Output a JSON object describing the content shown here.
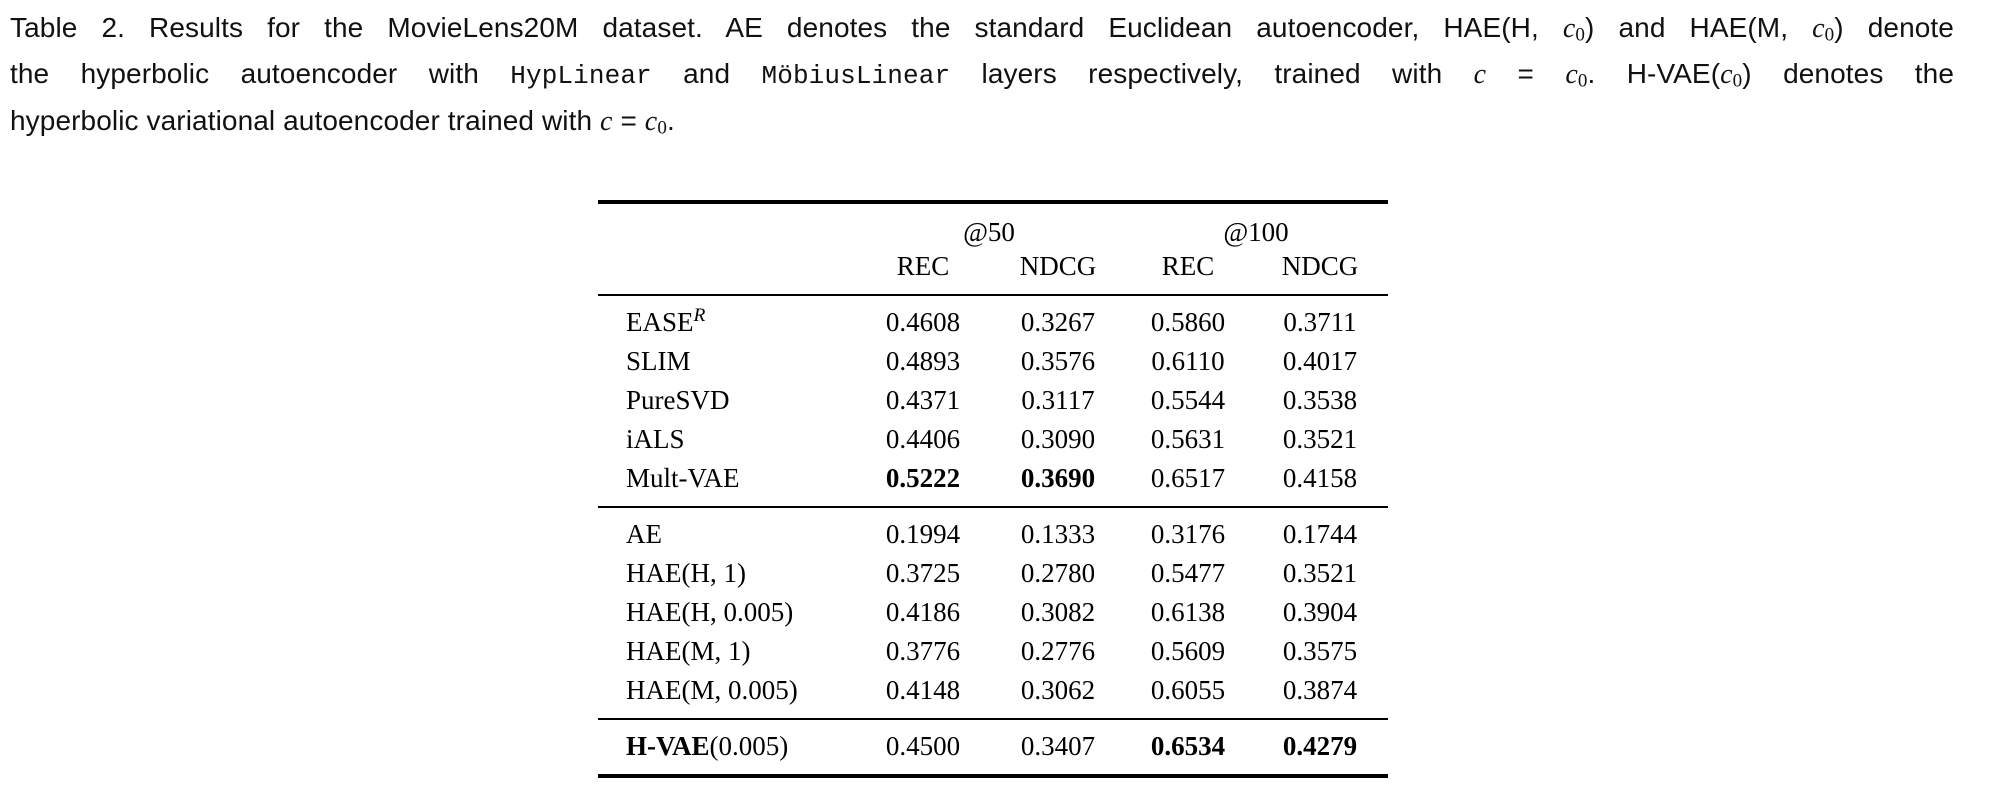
{
  "caption": {
    "lines": [
      [
        {
          "k": "r",
          "text": "Table 2.  Results for the MovieLens20M dataset. AE denotes the standard Euclidean autoencoder, HAE(H, "
        },
        {
          "k": "var",
          "text": "c"
        },
        {
          "k": "sub",
          "text": "0"
        },
        {
          "k": "r",
          "text": ") and HAE(M, "
        },
        {
          "k": "var",
          "text": "c"
        },
        {
          "k": "sub",
          "text": "0"
        },
        {
          "k": "r",
          "text": ") denote"
        }
      ],
      [
        {
          "k": "r",
          "text": "the hyperbolic autoencoder with "
        },
        {
          "k": "mono",
          "text": "HypLinear"
        },
        {
          "k": "r",
          "text": " and "
        },
        {
          "k": "mono",
          "text": "MöbiusLinear"
        },
        {
          "k": "r",
          "text": " layers respectively, trained with "
        },
        {
          "k": "var",
          "text": "c"
        },
        {
          "k": "r",
          "text": " = "
        },
        {
          "k": "var",
          "text": "c"
        },
        {
          "k": "sub",
          "text": "0"
        },
        {
          "k": "r",
          "text": ". H-VAE("
        },
        {
          "k": "var",
          "text": "c"
        },
        {
          "k": "sub",
          "text": "0"
        },
        {
          "k": "r",
          "text": ") denotes the"
        }
      ],
      [
        {
          "k": "r",
          "text": "hyperbolic variational autoencoder trained with "
        },
        {
          "k": "var",
          "text": "c"
        },
        {
          "k": "r",
          "text": " = "
        },
        {
          "k": "var",
          "text": "c"
        },
        {
          "k": "sub",
          "text": "0"
        },
        {
          "k": "r",
          "text": "."
        }
      ]
    ]
  },
  "table": {
    "header": {
      "group_at50": "@50",
      "group_at100": "@100",
      "rec": "REC",
      "ndcg": "NDCG"
    },
    "groups": [
      {
        "rows": [
          {
            "label": {
              "text": "EASE",
              "sup": "R"
            },
            "values": [
              "0.4608",
              "0.3267",
              "0.5860",
              "0.3711"
            ],
            "bold": [
              false,
              false,
              false,
              false
            ]
          },
          {
            "label": {
              "text": "SLIM"
            },
            "values": [
              "0.4893",
              "0.3576",
              "0.6110",
              "0.4017"
            ],
            "bold": [
              false,
              false,
              false,
              false
            ]
          },
          {
            "label": {
              "text": "PureSVD"
            },
            "values": [
              "0.4371",
              "0.3117",
              "0.5544",
              "0.3538"
            ],
            "bold": [
              false,
              false,
              false,
              false
            ]
          },
          {
            "label": {
              "text": "iALS"
            },
            "values": [
              "0.4406",
              "0.3090",
              "0.5631",
              "0.3521"
            ],
            "bold": [
              false,
              false,
              false,
              false
            ]
          },
          {
            "label": {
              "text": "Mult-VAE"
            },
            "values": [
              "0.5222",
              "0.3690",
              "0.6517",
              "0.4158"
            ],
            "bold": [
              true,
              true,
              false,
              false
            ]
          }
        ]
      },
      {
        "rows": [
          {
            "label": {
              "text": "AE"
            },
            "values": [
              "0.1994",
              "0.1333",
              "0.3176",
              "0.1744"
            ],
            "bold": [
              false,
              false,
              false,
              false
            ]
          },
          {
            "label": {
              "text": "HAE(H, 1)"
            },
            "values": [
              "0.3725",
              "0.2780",
              "0.5477",
              "0.3521"
            ],
            "bold": [
              false,
              false,
              false,
              false
            ]
          },
          {
            "label": {
              "text": "HAE(H, 0.005)"
            },
            "values": [
              "0.4186",
              "0.3082",
              "0.6138",
              "0.3904"
            ],
            "bold": [
              false,
              false,
              false,
              false
            ]
          },
          {
            "label": {
              "text": "HAE(M, 1)"
            },
            "values": [
              "0.3776",
              "0.2776",
              "0.5609",
              "0.3575"
            ],
            "bold": [
              false,
              false,
              false,
              false
            ]
          },
          {
            "label": {
              "text": "HAE(M, 0.005)"
            },
            "values": [
              "0.4148",
              "0.3062",
              "0.6055",
              "0.3874"
            ],
            "bold": [
              false,
              false,
              false,
              false
            ]
          }
        ]
      },
      {
        "rows": [
          {
            "label": {
              "bold_text": "H-VAE",
              "text": "(0.005)"
            },
            "values": [
              "0.4500",
              "0.3407",
              "0.6534",
              "0.4279"
            ],
            "bold": [
              false,
              false,
              true,
              true
            ]
          }
        ]
      }
    ]
  }
}
